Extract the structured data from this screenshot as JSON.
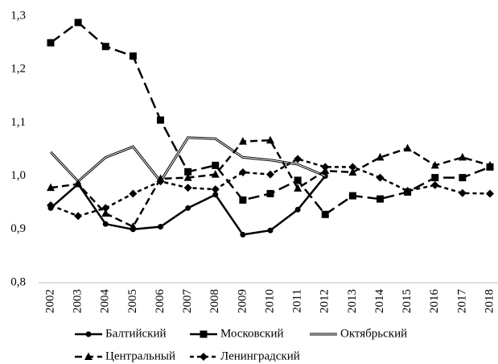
{
  "chart_data": {
    "type": "line",
    "categories": [
      "2002",
      "2003",
      "2004",
      "2005",
      "2006",
      "2007",
      "2008",
      "2009",
      "2010",
      "2011",
      "2012",
      "2013",
      "2014",
      "2015",
      "2016",
      "2017",
      "2018"
    ],
    "ylim": [
      0.8,
      1.3
    ],
    "yticks": [
      {
        "value": 0.8,
        "label": "0,8"
      },
      {
        "value": 0.9,
        "label": "0,9"
      },
      {
        "value": 1.0,
        "label": "1,0"
      },
      {
        "value": 1.1,
        "label": "1,1"
      },
      {
        "value": 1.2,
        "label": "1,2"
      },
      {
        "value": 1.3,
        "label": "1,3"
      }
    ],
    "grid": false,
    "legend": "bottom",
    "series": [
      {
        "name": "Балтийский",
        "color": "#000000",
        "marker": "circle",
        "dash": "solid",
        "values": [
          0.94,
          0.985,
          0.91,
          0.9,
          0.905,
          0.94,
          0.965,
          0.89,
          0.898,
          0.937,
          1.0,
          null,
          null,
          null,
          null,
          null,
          null
        ]
      },
      {
        "name": "Московский",
        "color": "#000000",
        "marker": "square",
        "dash": "long",
        "values": [
          1.25,
          1.288,
          1.243,
          1.225,
          1.105,
          1.008,
          1.02,
          0.955,
          0.967,
          0.992,
          0.928,
          0.963,
          0.957,
          0.97,
          0.997,
          0.997,
          1.017
        ]
      },
      {
        "name": "Октябрьский",
        "color": "#000000",
        "marker": "none",
        "dash": "hollow",
        "values": [
          1.045,
          0.99,
          1.035,
          1.055,
          0.99,
          1.072,
          1.07,
          1.035,
          1.03,
          1.022,
          1.0,
          null,
          null,
          null,
          null,
          null,
          null
        ]
      },
      {
        "name": "Центральный",
        "color": "#000000",
        "marker": "triangle",
        "dash": "medium",
        "values": [
          0.978,
          0.985,
          0.93,
          0.905,
          0.995,
          0.997,
          1.003,
          1.065,
          1.067,
          0.977,
          1.01,
          1.007,
          1.035,
          1.052,
          1.02,
          1.035,
          1.02
        ]
      },
      {
        "name": "Ленинградский",
        "color": "#000000",
        "marker": "diamond",
        "dash": "short",
        "values": [
          0.945,
          0.925,
          0.94,
          0.967,
          0.99,
          0.978,
          0.975,
          1.007,
          1.003,
          1.032,
          1.017,
          1.017,
          0.997,
          0.972,
          0.983,
          0.968,
          0.967
        ]
      }
    ]
  }
}
